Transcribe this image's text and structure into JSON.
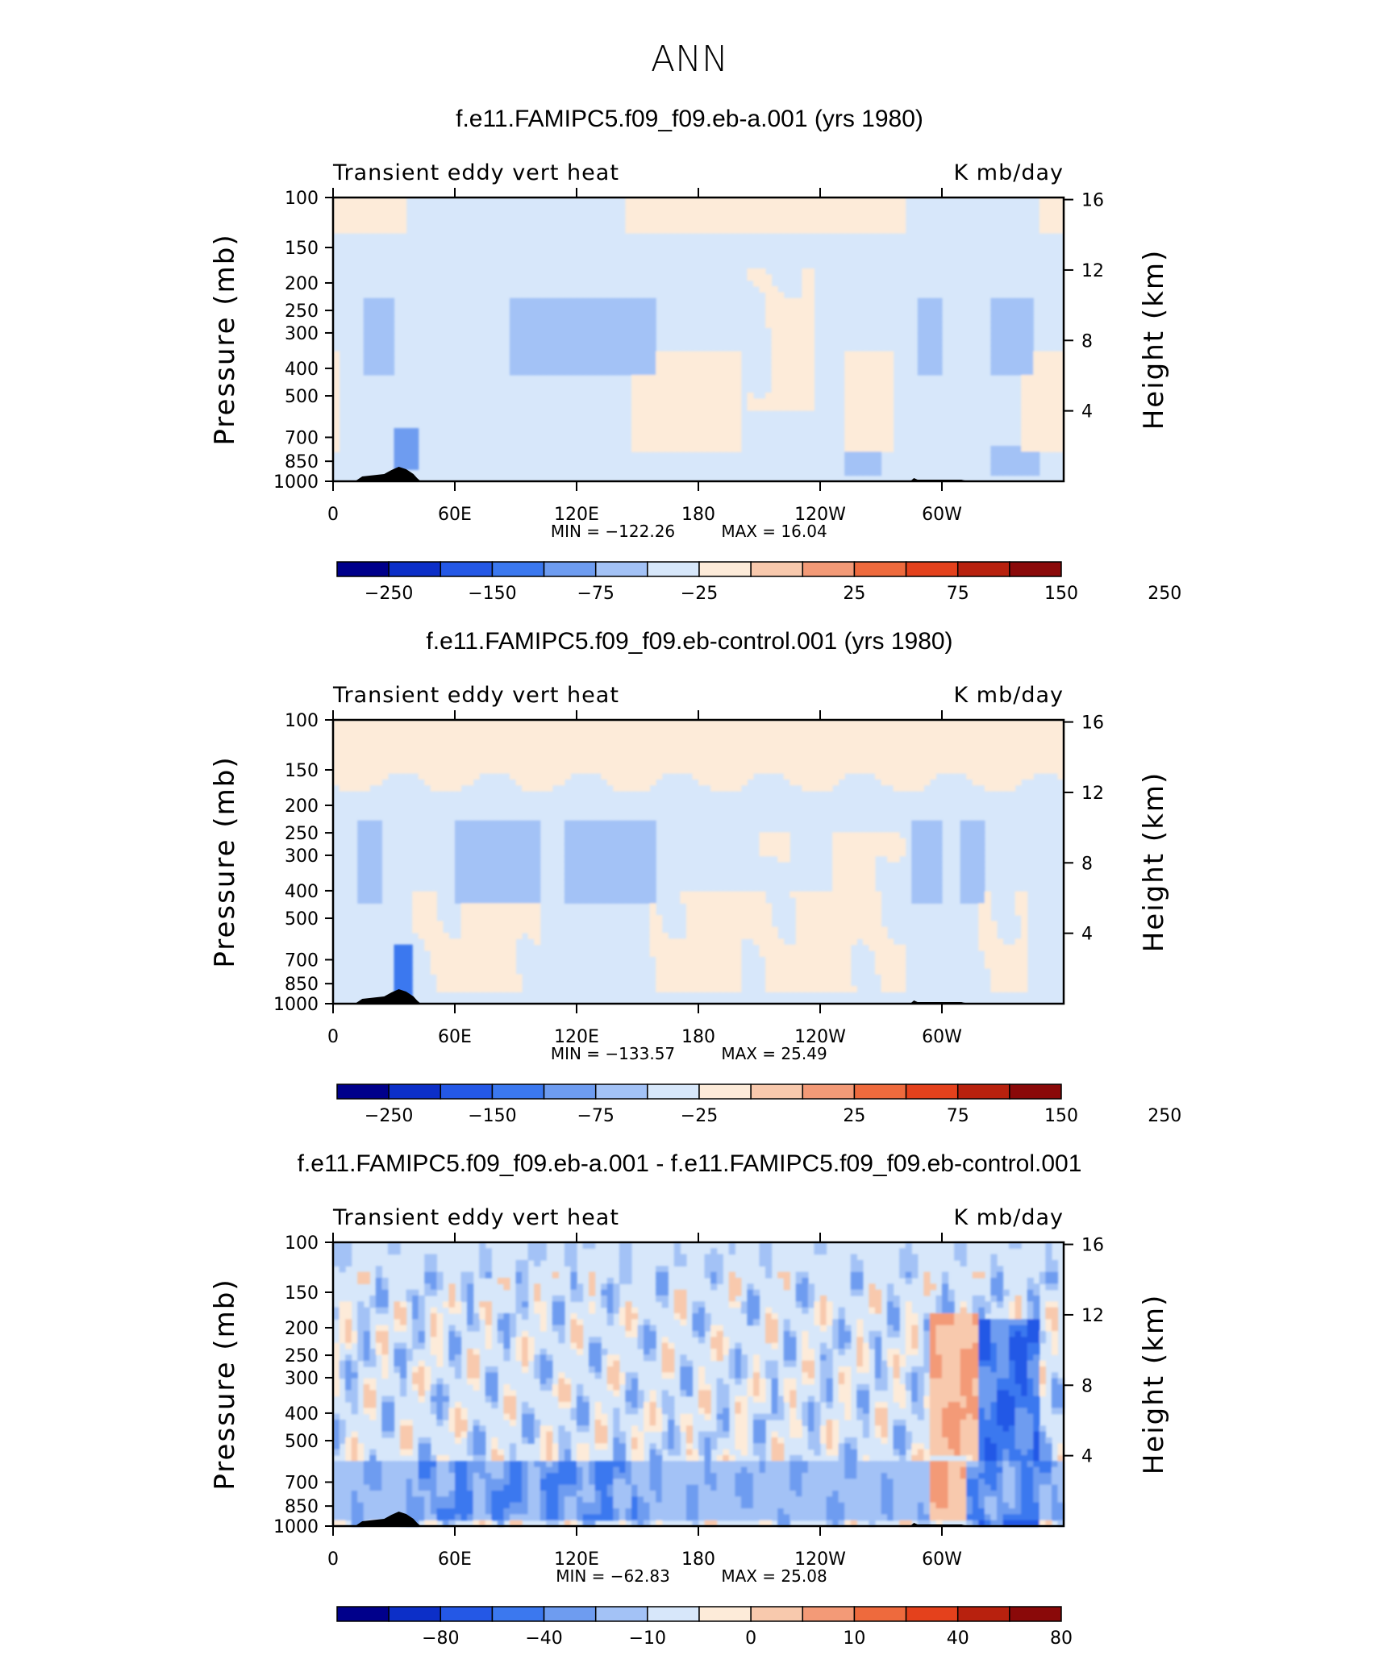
{
  "figure_title": "ANN",
  "chart_data": [
    {
      "type": "heatmap",
      "title": "f.e11.FAMIPC5.f09_f09.eb-a.001 (yrs 1980)",
      "variable_label": "Transient eddy vert heat",
      "units_label": "K mb/day",
      "ylabel": "Pressure (mb)",
      "ylabel_right": "Height (km)",
      "x_ticks": [
        "0",
        "60E",
        "120E",
        "180",
        "120W",
        "60W"
      ],
      "y_ticks": [
        "100",
        "150",
        "200",
        "250",
        "300",
        "400",
        "500",
        "700",
        "850",
        "1000"
      ],
      "y_right_ticks": [
        "16",
        "12",
        "8",
        "4"
      ],
      "min_label": "MIN = −122.26",
      "max_label": "MAX =   16.04",
      "min_value": -122.26,
      "max_value": 16.04,
      "colorbar_labels": [
        "−250",
        "−150",
        "−75",
        "−25",
        "25",
        "75",
        "150",
        "250"
      ]
    },
    {
      "type": "heatmap",
      "title": "f.e11.FAMIPC5.f09_f09.eb-control.001 (yrs 1980)",
      "variable_label": "Transient eddy vert heat",
      "units_label": "K mb/day",
      "ylabel": "Pressure (mb)",
      "ylabel_right": "Height (km)",
      "x_ticks": [
        "0",
        "60E",
        "120E",
        "180",
        "120W",
        "60W"
      ],
      "y_ticks": [
        "100",
        "150",
        "200",
        "250",
        "300",
        "400",
        "500",
        "700",
        "850",
        "1000"
      ],
      "y_right_ticks": [
        "16",
        "12",
        "8",
        "4"
      ],
      "min_label": "MIN = −133.57",
      "max_label": "MAX =   25.49",
      "min_value": -133.57,
      "max_value": 25.49,
      "colorbar_labels": [
        "−250",
        "−150",
        "−75",
        "−25",
        "25",
        "75",
        "150",
        "250"
      ]
    },
    {
      "type": "heatmap",
      "title": "f.e11.FAMIPC5.f09_f09.eb-a.001 - f.e11.FAMIPC5.f09_f09.eb-control.001",
      "variable_label": "Transient eddy vert heat",
      "units_label": "K mb/day",
      "ylabel": "Pressure (mb)",
      "ylabel_right": "Height (km)",
      "x_ticks": [
        "0",
        "60E",
        "120E",
        "180",
        "120W",
        "60W"
      ],
      "y_ticks": [
        "100",
        "150",
        "200",
        "250",
        "300",
        "400",
        "500",
        "700",
        "850",
        "1000"
      ],
      "y_right_ticks": [
        "16",
        "12",
        "8",
        "4"
      ],
      "min_label": "MIN = −62.83",
      "max_label": "MAX =   25.08",
      "min_value": -62.83,
      "max_value": 25.08,
      "colorbar_labels": [
        "−80",
        "−40",
        "−10",
        "0",
        "10",
        "40",
        "80"
      ]
    }
  ],
  "colors": {
    "palette": [
      "#00008b",
      "#0c2fc8",
      "#2458e6",
      "#3b78ef",
      "#6e9cf0",
      "#a3c2f6",
      "#d7e7fa",
      "#fdebd9",
      "#f8c9ad",
      "#f39a77",
      "#ee6a3d",
      "#e4411c",
      "#b8210e",
      "#8a0909"
    ],
    "topography": "#000000"
  }
}
